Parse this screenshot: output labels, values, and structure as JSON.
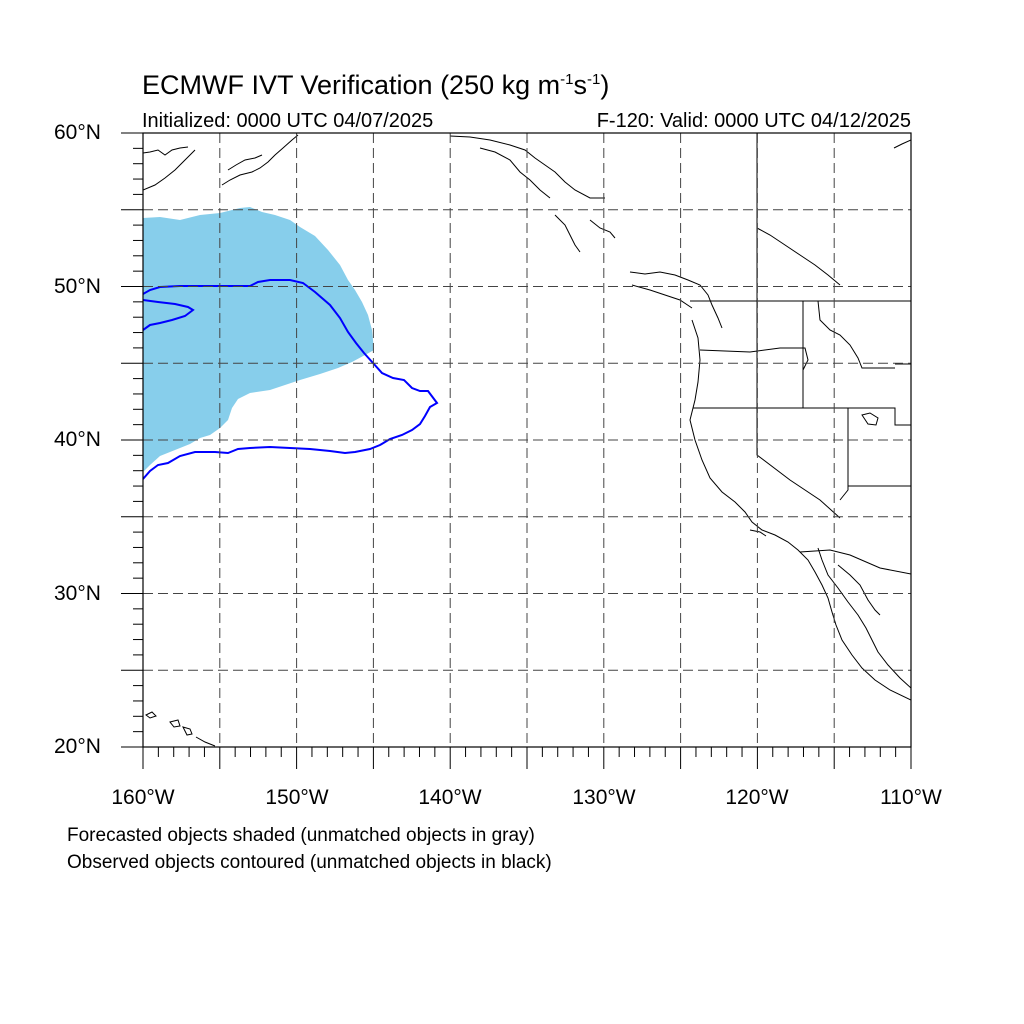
{
  "title": {
    "main": "ECMWF IVT Verification (250 kg m",
    "exp1": "-1",
    "mid": "s",
    "exp2": "-1",
    "end": ")"
  },
  "subtitle_left": "Initialized: 0000 UTC 04/07/2025",
  "subtitle_right": "F-120: Valid: 0000 UTC 04/12/2025",
  "map": {
    "lon_range": [
      -160,
      -110
    ],
    "lat_range": [
      20,
      60
    ],
    "grid": "dashed, every 5 degrees",
    "lat_labels": [
      "20°N",
      "30°N",
      "40°N",
      "50°N",
      "60°N"
    ],
    "lon_labels": [
      "160°W",
      "150°W",
      "140°W",
      "130°W",
      "120°W",
      "110°W"
    ],
    "forecast_color": "#87ceeb",
    "observed_color": "#0000ff",
    "coast_color": "#000000"
  },
  "captions": [
    "Forecasted objects shaded (unmatched objects in gray)",
    "Observed objects contoured (unmatched objects in black)"
  ]
}
